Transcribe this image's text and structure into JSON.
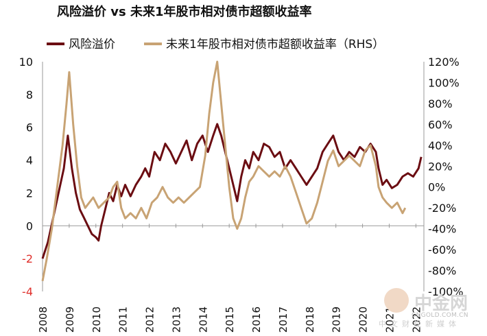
{
  "chart_data": {
    "type": "line",
    "title": "风险溢价 vs 未来1年股市相对债市超额收益率",
    "x_ticks": [
      "2008",
      "2009",
      "2010",
      "2011",
      "2012",
      "2013",
      "2014",
      "2015",
      "2016",
      "2017",
      "2018",
      "2019",
      "2020",
      "2021",
      "2022"
    ],
    "y_left": {
      "lim": [
        -4,
        10
      ],
      "ticks": [
        "-4",
        "-2",
        "0",
        "2",
        "4",
        "6",
        "8",
        "10"
      ]
    },
    "y_right": {
      "lim": [
        -100,
        120
      ],
      "ticks": [
        "-100%",
        "-80%",
        "-60%",
        "-40%",
        "-20%",
        "0%",
        "20%",
        "40%",
        "60%",
        "80%",
        "100%",
        "120%"
      ]
    },
    "grid": false,
    "legend_position": "top",
    "series": [
      {
        "name": "风险溢价",
        "axis": "left",
        "color": "#6b0d12",
        "points": [
          [
            2008.0,
            -2.0
          ],
          [
            2008.2,
            -1.0
          ],
          [
            2008.4,
            0.5
          ],
          [
            2008.6,
            2.0
          ],
          [
            2008.8,
            3.5
          ],
          [
            2008.95,
            5.5
          ],
          [
            2009.1,
            3.5
          ],
          [
            2009.25,
            2.0
          ],
          [
            2009.4,
            1.0
          ],
          [
            2009.55,
            0.5
          ],
          [
            2009.7,
            0.0
          ],
          [
            2009.85,
            -0.5
          ],
          [
            2010.0,
            -0.7
          ],
          [
            2010.1,
            -0.9
          ],
          [
            2010.2,
            0.0
          ],
          [
            2010.35,
            1.0
          ],
          [
            2010.5,
            2.0
          ],
          [
            2010.65,
            1.5
          ],
          [
            2010.8,
            2.5
          ],
          [
            2010.95,
            1.8
          ],
          [
            2011.1,
            2.5
          ],
          [
            2011.3,
            1.8
          ],
          [
            2011.5,
            2.5
          ],
          [
            2011.7,
            3.0
          ],
          [
            2011.85,
            3.5
          ],
          [
            2012.0,
            3.0
          ],
          [
            2012.2,
            4.5
          ],
          [
            2012.4,
            4.0
          ],
          [
            2012.6,
            5.0
          ],
          [
            2012.8,
            4.5
          ],
          [
            2013.0,
            3.8
          ],
          [
            2013.2,
            4.5
          ],
          [
            2013.4,
            5.2
          ],
          [
            2013.6,
            4.0
          ],
          [
            2013.8,
            5.0
          ],
          [
            2014.0,
            5.5
          ],
          [
            2014.2,
            4.5
          ],
          [
            2014.4,
            5.5
          ],
          [
            2014.55,
            6.2
          ],
          [
            2014.7,
            5.5
          ],
          [
            2014.85,
            4.5
          ],
          [
            2015.0,
            3.5
          ],
          [
            2015.15,
            2.5
          ],
          [
            2015.3,
            1.5
          ],
          [
            2015.45,
            3.0
          ],
          [
            2015.6,
            4.0
          ],
          [
            2015.75,
            3.5
          ],
          [
            2015.9,
            4.5
          ],
          [
            2016.1,
            4.0
          ],
          [
            2016.3,
            5.0
          ],
          [
            2016.5,
            4.8
          ],
          [
            2016.7,
            4.2
          ],
          [
            2016.9,
            4.5
          ],
          [
            2017.1,
            3.5
          ],
          [
            2017.3,
            4.0
          ],
          [
            2017.5,
            3.5
          ],
          [
            2017.7,
            3.0
          ],
          [
            2017.9,
            2.5
          ],
          [
            2018.1,
            3.0
          ],
          [
            2018.3,
            3.5
          ],
          [
            2018.5,
            4.5
          ],
          [
            2018.7,
            5.0
          ],
          [
            2018.9,
            5.5
          ],
          [
            2019.1,
            4.5
          ],
          [
            2019.3,
            4.0
          ],
          [
            2019.5,
            4.5
          ],
          [
            2019.7,
            4.2
          ],
          [
            2019.9,
            4.8
          ],
          [
            2020.1,
            4.5
          ],
          [
            2020.3,
            5.0
          ],
          [
            2020.5,
            4.5
          ],
          [
            2020.6,
            3.5
          ],
          [
            2020.75,
            2.5
          ],
          [
            2020.9,
            2.8
          ],
          [
            2021.1,
            2.3
          ],
          [
            2021.3,
            2.5
          ],
          [
            2021.5,
            3.0
          ],
          [
            2021.7,
            3.2
          ],
          [
            2021.9,
            3.0
          ],
          [
            2022.1,
            3.5
          ],
          [
            2022.2,
            4.2
          ]
        ]
      },
      {
        "name": "未来1年股市相对债市超额收益率（RHS）",
        "axis": "right",
        "color": "#c8a374",
        "points": [
          [
            2008.0,
            -90
          ],
          [
            2008.15,
            -70
          ],
          [
            2008.35,
            -40
          ],
          [
            2008.55,
            0
          ],
          [
            2008.75,
            40
          ],
          [
            2008.9,
            80
          ],
          [
            2009.0,
            110
          ],
          [
            2009.15,
            60
          ],
          [
            2009.3,
            20
          ],
          [
            2009.45,
            -10
          ],
          [
            2009.6,
            -20
          ],
          [
            2009.75,
            -15
          ],
          [
            2009.9,
            -10
          ],
          [
            2010.1,
            -20
          ],
          [
            2010.3,
            -15
          ],
          [
            2010.5,
            -10
          ],
          [
            2010.65,
            0
          ],
          [
            2010.8,
            5
          ],
          [
            2010.95,
            -20
          ],
          [
            2011.1,
            -30
          ],
          [
            2011.3,
            -25
          ],
          [
            2011.5,
            -30
          ],
          [
            2011.7,
            -20
          ],
          [
            2011.9,
            -30
          ],
          [
            2012.1,
            -15
          ],
          [
            2012.3,
            -10
          ],
          [
            2012.5,
            0
          ],
          [
            2012.7,
            -10
          ],
          [
            2012.9,
            -15
          ],
          [
            2013.1,
            -10
          ],
          [
            2013.3,
            -15
          ],
          [
            2013.5,
            -10
          ],
          [
            2013.7,
            -5
          ],
          [
            2013.9,
            0
          ],
          [
            2014.1,
            30
          ],
          [
            2014.25,
            70
          ],
          [
            2014.4,
            100
          ],
          [
            2014.55,
            120
          ],
          [
            2014.7,
            80
          ],
          [
            2014.85,
            40
          ],
          [
            2015.0,
            0
          ],
          [
            2015.15,
            -30
          ],
          [
            2015.3,
            -40
          ],
          [
            2015.45,
            -30
          ],
          [
            2015.6,
            -10
          ],
          [
            2015.75,
            5
          ],
          [
            2015.9,
            10
          ],
          [
            2016.1,
            20
          ],
          [
            2016.3,
            15
          ],
          [
            2016.5,
            10
          ],
          [
            2016.7,
            15
          ],
          [
            2016.9,
            10
          ],
          [
            2017.1,
            20
          ],
          [
            2017.3,
            10
          ],
          [
            2017.5,
            -5
          ],
          [
            2017.7,
            -20
          ],
          [
            2017.9,
            -35
          ],
          [
            2018.1,
            -30
          ],
          [
            2018.3,
            -15
          ],
          [
            2018.5,
            5
          ],
          [
            2018.7,
            25
          ],
          [
            2018.9,
            35
          ],
          [
            2019.1,
            20
          ],
          [
            2019.3,
            25
          ],
          [
            2019.5,
            30
          ],
          [
            2019.7,
            25
          ],
          [
            2019.9,
            20
          ],
          [
            2020.1,
            35
          ],
          [
            2020.3,
            40
          ],
          [
            2020.5,
            20
          ],
          [
            2020.6,
            0
          ],
          [
            2020.75,
            -10
          ],
          [
            2020.9,
            -15
          ],
          [
            2021.1,
            -20
          ],
          [
            2021.3,
            -15
          ],
          [
            2021.5,
            -25
          ],
          [
            2021.6,
            -20
          ]
        ]
      }
    ]
  },
  "watermark": {
    "url": "CNGOLD.COM.CN",
    "name": "中金网",
    "sub": "中文财经新媒体"
  }
}
